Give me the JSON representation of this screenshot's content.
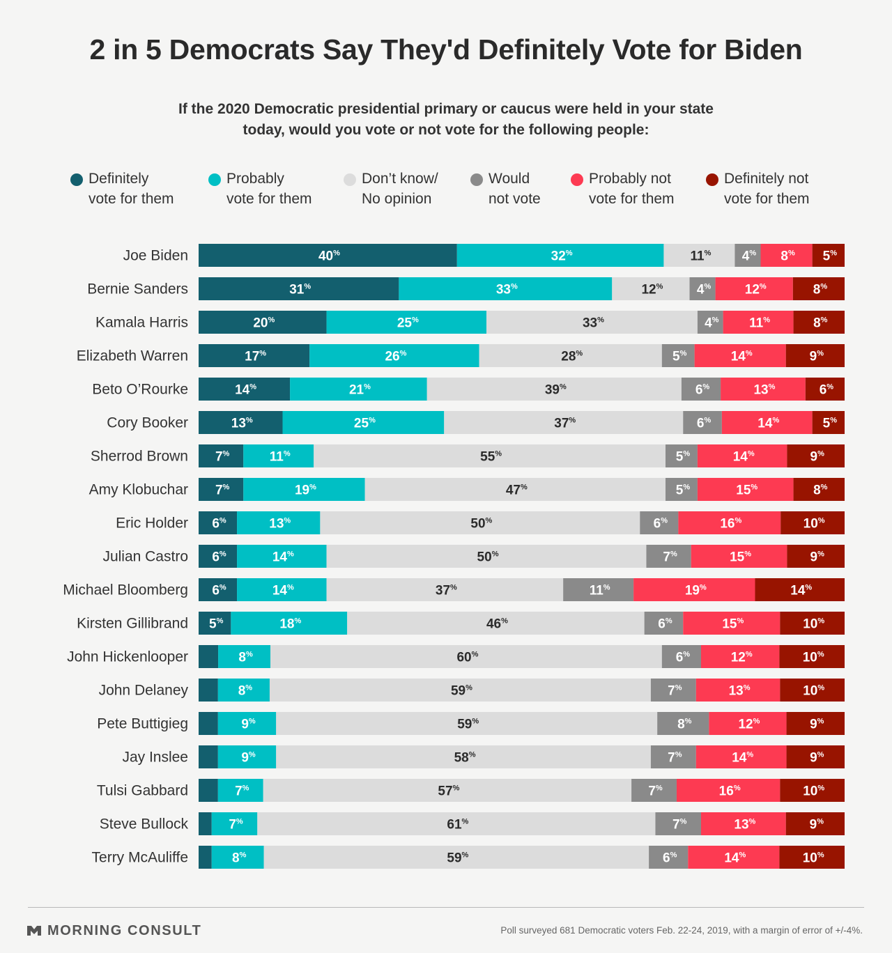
{
  "title": "2 in 5 Democrats Say They'd Definitely Vote for Biden",
  "subtitle": "If the 2020 Democratic presidential primary or caucus were held in your state today, would you vote or not vote for the following people:",
  "legend": [
    {
      "label": "Definitely\nvote for them",
      "color": "#135f6e"
    },
    {
      "label": "Probably\nvote for them",
      "color": "#00bfc4"
    },
    {
      "label": "Don’t know/\nNo opinion",
      "color": "#dcdcdc"
    },
    {
      "label": "Would\nnot vote",
      "color": "#8a8a8a"
    },
    {
      "label": "Probably not\nvote for them",
      "color": "#fd3a52"
    },
    {
      "label": "Definitely not\nvote for them",
      "color": "#981400"
    }
  ],
  "chart_data": {
    "type": "bar",
    "orientation": "horizontal",
    "stacked": true,
    "normalized": true,
    "unit": "%",
    "categories": [
      "Joe Biden",
      "Bernie Sanders",
      "Kamala Harris",
      "Elizabeth Warren",
      "Beto O’Rourke",
      "Cory Booker",
      "Sherrod Brown",
      "Amy Klobuchar",
      "Eric Holder",
      "Julian Castro",
      "Michael Bloomberg",
      "Kirsten Gillibrand",
      "John Hickenlooper",
      "John Delaney",
      "Pete Buttigieg",
      "Jay Inslee",
      "Tulsi Gabbard",
      "Steve Bullock",
      "Terry McAuliffe"
    ],
    "series": [
      {
        "name": "Definitely vote for them",
        "color": "#135f6e",
        "label_color": "#ffffff",
        "values": [
          40,
          31,
          20,
          17,
          14,
          13,
          7,
          7,
          6,
          6,
          6,
          5,
          3,
          3,
          3,
          3,
          3,
          2,
          2
        ],
        "labeled": [
          true,
          true,
          true,
          true,
          true,
          true,
          true,
          true,
          true,
          true,
          true,
          true,
          false,
          false,
          false,
          false,
          false,
          false,
          false
        ]
      },
      {
        "name": "Probably vote for them",
        "color": "#00bfc4",
        "label_color": "#ffffff",
        "values": [
          32,
          33,
          25,
          26,
          21,
          25,
          11,
          19,
          13,
          14,
          14,
          18,
          8,
          8,
          9,
          9,
          7,
          7,
          8
        ]
      },
      {
        "name": "Don’t know/ No opinion",
        "color": "#dcdcdc",
        "label_color": "#2b2b2b",
        "values": [
          11,
          12,
          33,
          28,
          39,
          37,
          55,
          47,
          50,
          50,
          37,
          46,
          60,
          59,
          59,
          58,
          57,
          61,
          59
        ]
      },
      {
        "name": "Would not vote",
        "color": "#8a8a8a",
        "label_color": "#ffffff",
        "values": [
          4,
          4,
          4,
          5,
          6,
          6,
          5,
          5,
          6,
          7,
          11,
          6,
          6,
          7,
          8,
          7,
          7,
          7,
          6
        ]
      },
      {
        "name": "Probably not vote for them",
        "color": "#fd3a52",
        "label_color": "#ffffff",
        "values": [
          8,
          12,
          11,
          14,
          13,
          14,
          14,
          15,
          16,
          15,
          19,
          15,
          12,
          13,
          12,
          14,
          16,
          13,
          14
        ]
      },
      {
        "name": "Definitely not vote for them",
        "color": "#981400",
        "label_color": "#ffffff",
        "values": [
          5,
          8,
          8,
          9,
          6,
          5,
          9,
          8,
          10,
          9,
          14,
          10,
          10,
          10,
          9,
          9,
          10,
          9,
          10
        ]
      }
    ]
  },
  "footer": {
    "brand": "MORNING CONSULT",
    "source": "Poll surveyed 681 Democratic voters Feb. 22-24, 2019, with a margin of error of +/-4%."
  }
}
